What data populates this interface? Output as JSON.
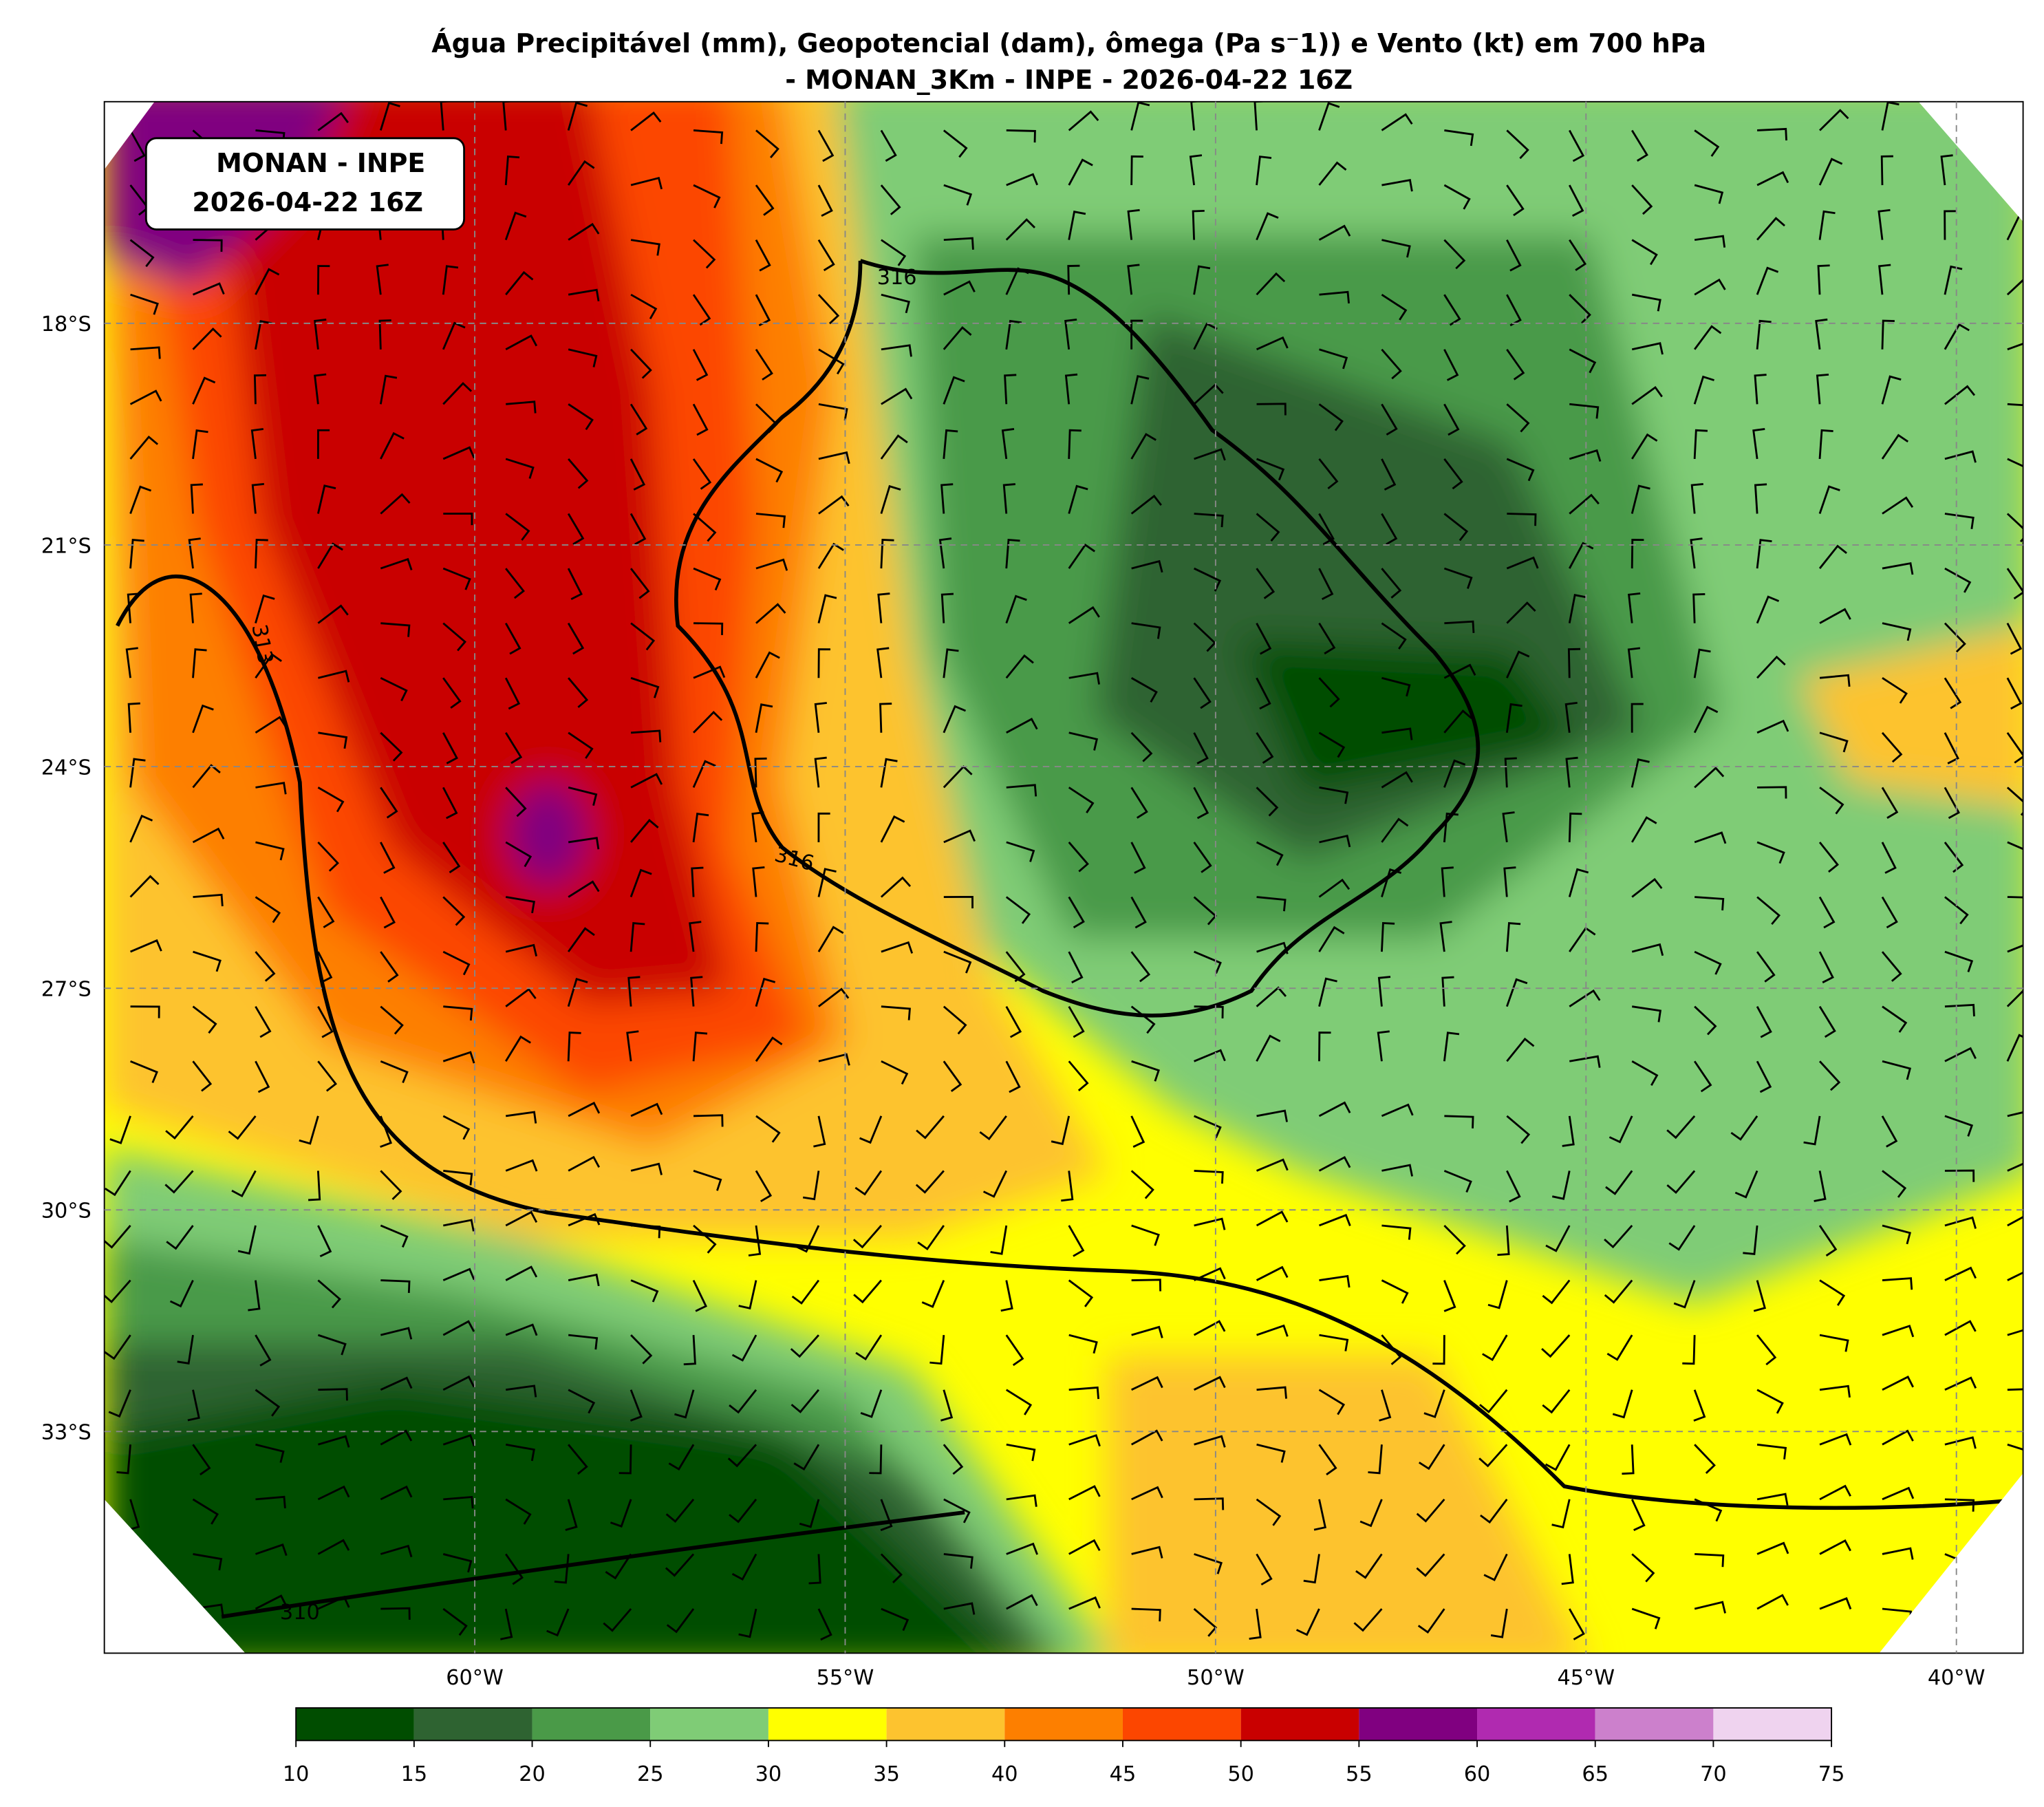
{
  "header": {
    "title": [
      "Água Precipitável (mm), Geopotencial (dam), ômega (Pa s⁻1)) e Vento (kt) em 700 hPa",
      "- MONAN_3Km - INPE - 2026-04-22 16Z"
    ]
  },
  "annotation": [
    "MONAN - INPE",
    "2026-04-22 16Z"
  ],
  "map": {
    "xlim": [
      -65,
      -39.1
    ],
    "ylim": [
      -36,
      -15
    ],
    "xticks": [
      {
        "value": -60,
        "label": "60°W"
      },
      {
        "value": -55,
        "label": "55°W"
      },
      {
        "value": -50,
        "label": "50°W"
      },
      {
        "value": -45,
        "label": "45°W"
      },
      {
        "value": -40,
        "label": "40°W"
      }
    ],
    "yticks": [
      {
        "value": -18,
        "label": "18°S"
      },
      {
        "value": -21,
        "label": "21°S"
      },
      {
        "value": -24,
        "label": "24°S"
      },
      {
        "value": -27,
        "label": "27°S"
      },
      {
        "value": -30,
        "label": "30°S"
      },
      {
        "value": -33,
        "label": "33°S"
      }
    ],
    "contour_labels": [
      "313",
      "316",
      "316",
      "310"
    ]
  },
  "colorbar": {
    "ticks": [
      10,
      15,
      20,
      25,
      30,
      35,
      40,
      45,
      50,
      55,
      60,
      65,
      70,
      75
    ],
    "colors": [
      "#004d00",
      "#2e6331",
      "#4a9a48",
      "#7fcc76",
      "#ffff00",
      "#fdc32f",
      "#fd7f00",
      "#fc4600",
      "#c90000",
      "#800080",
      "#b02ab0",
      "#cc80cc",
      "#efd3ef"
    ]
  }
}
